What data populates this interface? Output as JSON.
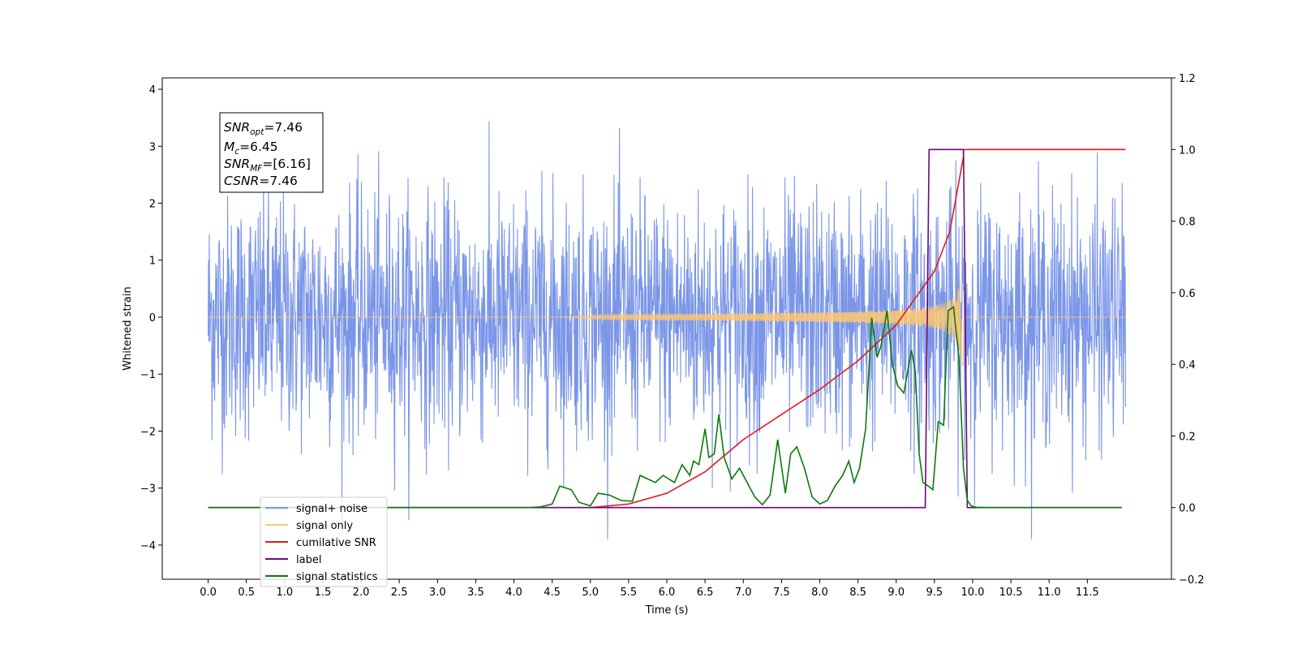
{
  "chart_data": {
    "type": "line",
    "xlabel": "Time (s)",
    "ylabel": "Whitened strain",
    "xlim": [
      -0.6,
      12.6
    ],
    "ylim": [
      -4.6,
      4.2
    ],
    "y2lim": [
      -0.2,
      1.2
    ],
    "x_ticks": [
      "0.0",
      "0.5",
      "1.0",
      "1.5",
      "2.0",
      "2.5",
      "3.0",
      "3.5",
      "4.0",
      "4.5",
      "5.0",
      "5.5",
      "6.0",
      "6.5",
      "7.0",
      "7.5",
      "8.0",
      "8.5",
      "9.0",
      "9.5",
      "10.0",
      "10.5",
      "11.0",
      "11.5"
    ],
    "y_ticks": [
      "4",
      "3",
      "2",
      "1",
      "0",
      "−1",
      "−2",
      "−3",
      "−4"
    ],
    "y2_ticks": [
      "1.2",
      "1.0",
      "0.8",
      "0.6",
      "0.4",
      "0.2",
      "0.0",
      "−0.2"
    ],
    "annotation": {
      "snr_opt": {
        "base": "SNR",
        "sub": "opt",
        "value": "=7.46"
      },
      "mc": {
        "base": "M",
        "sub": "c",
        "value": "=6.45"
      },
      "snr_mf": {
        "base": "SNR",
        "sub": "MF",
        "value": "=[6.16]"
      },
      "csnr": {
        "base": "CSNR",
        "sub": "",
        "value": "=7.46"
      }
    },
    "legend_position": "lower-left",
    "series": [
      {
        "name": "signal+ noise",
        "axis": "left",
        "color": "#7b96e8",
        "x_range": [
          0.0,
          12.0
        ],
        "amplitude_range": [
          -3.9,
          3.8
        ]
      },
      {
        "name": "signal only",
        "axis": "left",
        "color": "#ffc870",
        "x_range": [
          0.0,
          12.0
        ],
        "chirp_end": 9.88,
        "peak_amplitude": 0.85
      },
      {
        "name": "cumilative SNR",
        "axis": "right",
        "color": "#e31a1c",
        "x": [
          0.0,
          4.5,
          5.0,
          5.5,
          6.0,
          6.5,
          7.0,
          7.5,
          8.0,
          8.5,
          9.0,
          9.5,
          9.7,
          9.88,
          9.88,
          12.0
        ],
        "values": [
          0.0,
          0.0,
          0.0,
          0.01,
          0.04,
          0.1,
          0.19,
          0.26,
          0.33,
          0.41,
          0.51,
          0.66,
          0.77,
          0.98,
          1.0,
          1.0
        ]
      },
      {
        "name": "label",
        "axis": "right",
        "color": "#6a0a7a",
        "x": [
          0.0,
          9.38,
          9.43,
          9.88,
          9.93,
          11.95
        ],
        "values": [
          0.0,
          0.0,
          1.0,
          1.0,
          0.0,
          0.0
        ]
      },
      {
        "name": "signal statistics",
        "axis": "right",
        "color": "#0a7a0a",
        "x": [
          0.0,
          4.2,
          4.35,
          4.5,
          4.6,
          4.75,
          4.85,
          5.0,
          5.1,
          5.25,
          5.4,
          5.55,
          5.65,
          5.75,
          5.85,
          5.95,
          6.1,
          6.2,
          6.3,
          6.35,
          6.42,
          6.5,
          6.55,
          6.62,
          6.68,
          6.75,
          6.85,
          6.95,
          7.05,
          7.15,
          7.25,
          7.35,
          7.45,
          7.55,
          7.62,
          7.7,
          7.8,
          7.9,
          8.0,
          8.1,
          8.2,
          8.3,
          8.38,
          8.45,
          8.52,
          8.6,
          8.68,
          8.75,
          8.8,
          8.88,
          8.95,
          9.02,
          9.1,
          9.2,
          9.25,
          9.3,
          9.35,
          9.42,
          9.48,
          9.55,
          9.62,
          9.68,
          9.75,
          9.82,
          9.88,
          9.93,
          9.98,
          10.05,
          10.2,
          11.95
        ],
        "values": [
          0.0,
          0.0,
          0.002,
          0.01,
          0.06,
          0.05,
          0.015,
          0.005,
          0.04,
          0.035,
          0.02,
          0.018,
          0.09,
          0.08,
          0.07,
          0.09,
          0.07,
          0.12,
          0.09,
          0.13,
          0.12,
          0.22,
          0.14,
          0.15,
          0.26,
          0.14,
          0.08,
          0.11,
          0.07,
          0.03,
          0.008,
          0.035,
          0.19,
          0.04,
          0.15,
          0.17,
          0.11,
          0.03,
          0.01,
          0.02,
          0.06,
          0.09,
          0.13,
          0.07,
          0.11,
          0.22,
          0.53,
          0.42,
          0.45,
          0.55,
          0.4,
          0.34,
          0.32,
          0.44,
          0.38,
          0.15,
          0.07,
          0.06,
          0.05,
          0.24,
          0.23,
          0.55,
          0.56,
          0.42,
          0.11,
          0.02,
          0.005,
          0.001,
          0.0,
          0.0
        ]
      }
    ]
  }
}
